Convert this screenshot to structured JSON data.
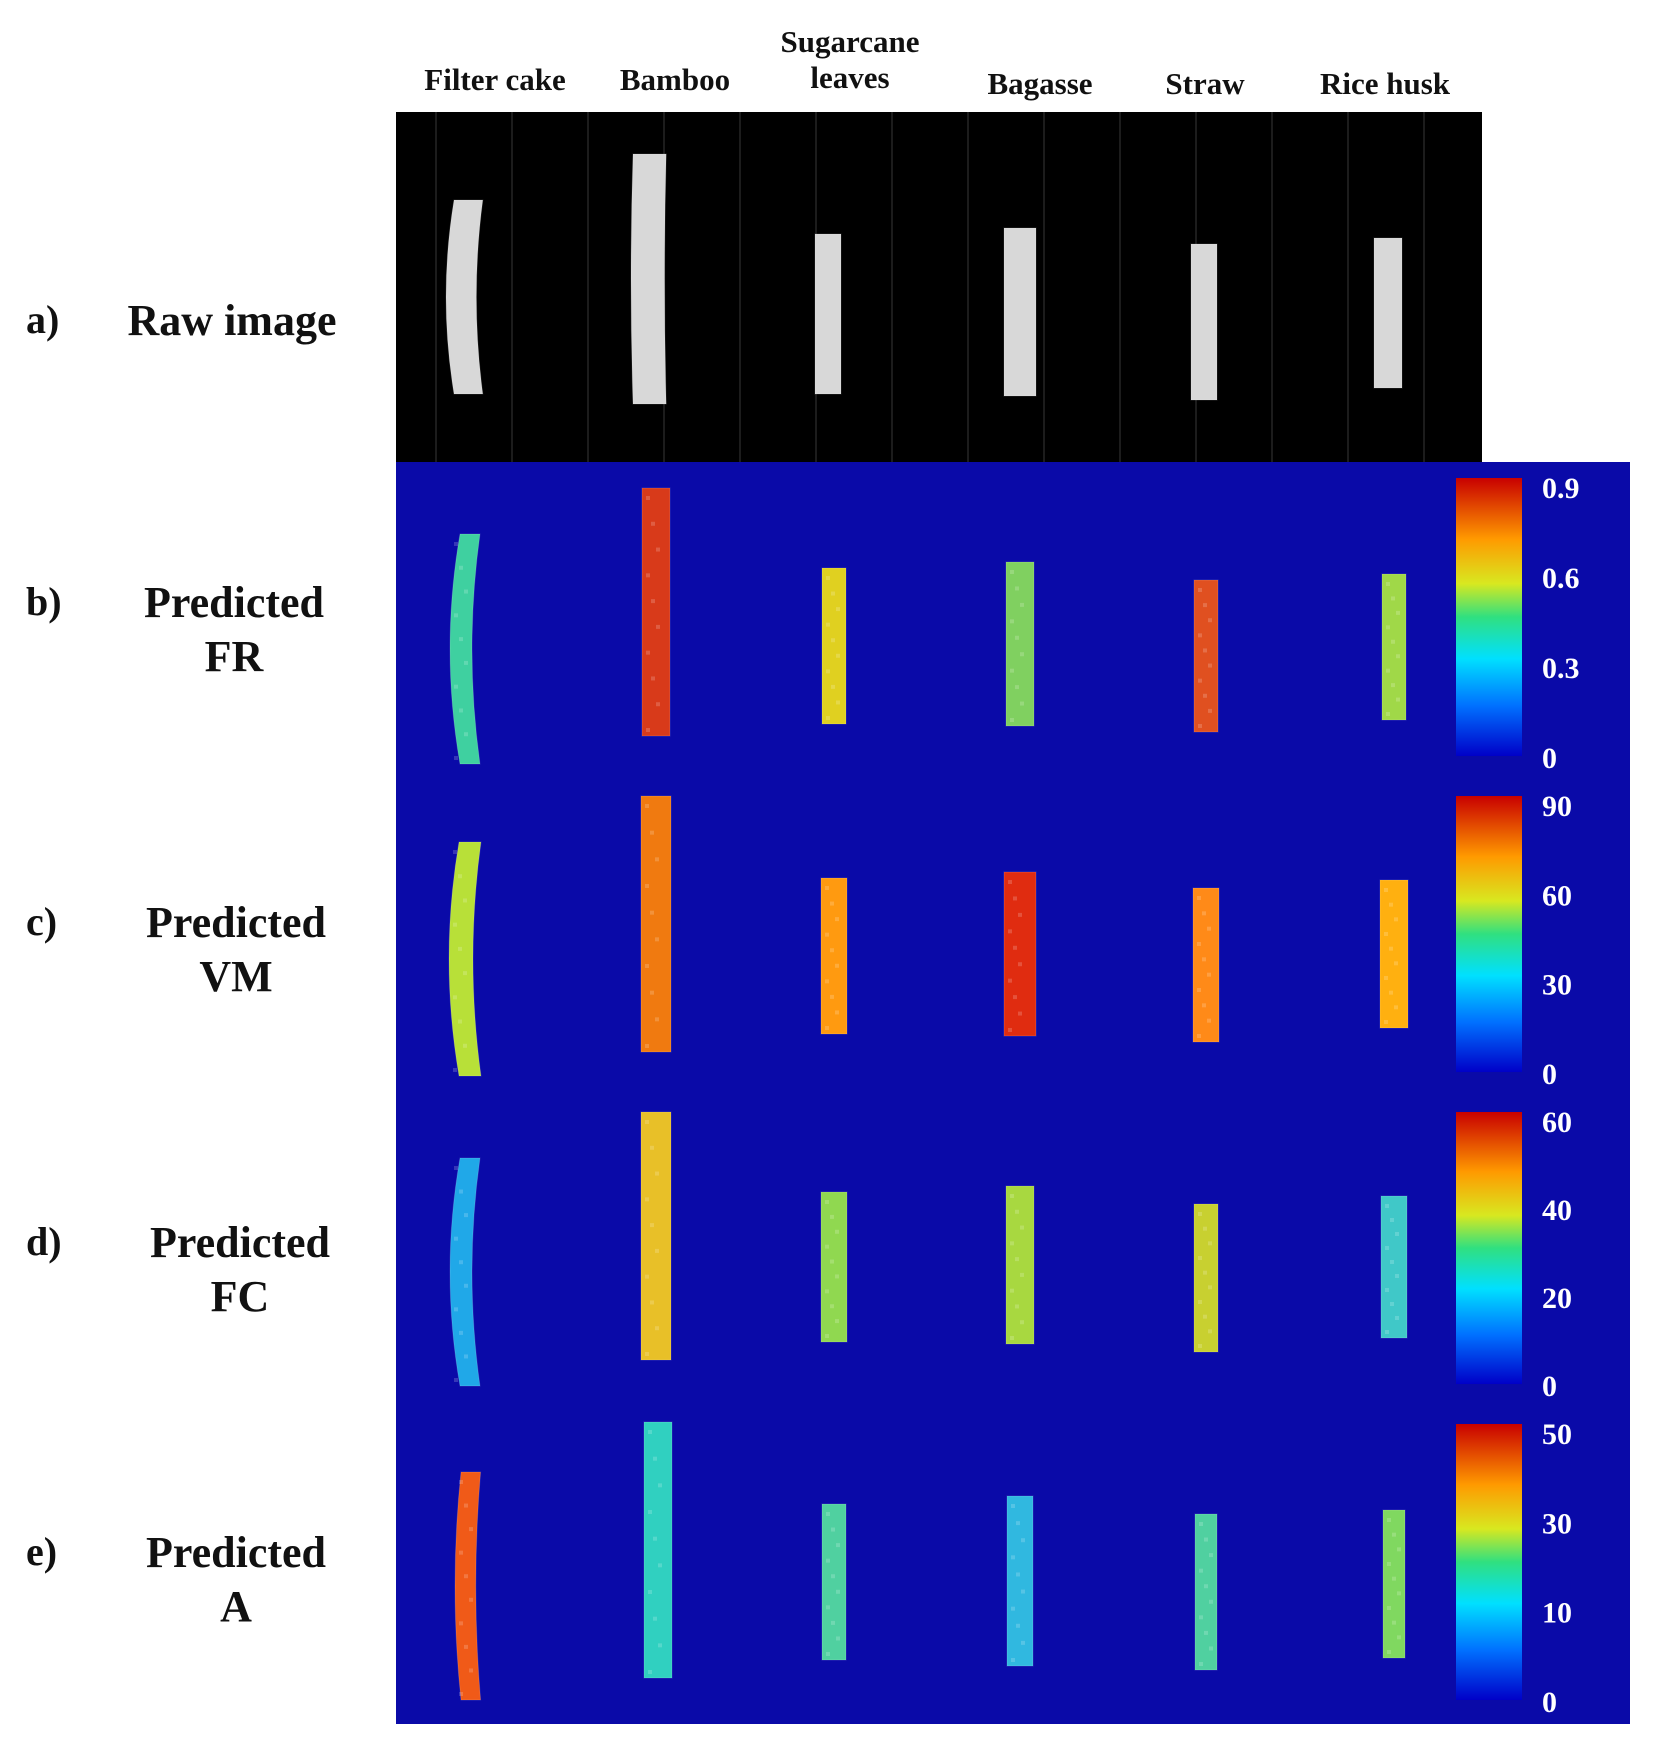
{
  "columns": [
    "Filter cake",
    "Bamboo",
    "Sugarcane leaves",
    "Bagasse",
    "Straw",
    "Rice husk"
  ],
  "columns_display": [
    {
      "line1": "Filter cake",
      "line2": ""
    },
    {
      "line1": "Bamboo",
      "line2": ""
    },
    {
      "line1": "Sugarcane",
      "line2": "leaves"
    },
    {
      "line1": "Bagasse",
      "line2": ""
    },
    {
      "line1": "Straw",
      "line2": ""
    },
    {
      "line1": "Rice husk",
      "line2": ""
    }
  ],
  "rows": [
    {
      "letter": "a)",
      "label1": "Raw image",
      "label2": "",
      "type": "raw"
    },
    {
      "letter": "b)",
      "label1": "Predicted",
      "label2": "FR",
      "type": "map",
      "colorbar": {
        "ticks": [
          "0.9",
          "0.6",
          "0.3",
          "0"
        ]
      },
      "sample_colors": [
        "#3fd0a0",
        "#d83a1a",
        "#e0d020",
        "#80d060",
        "#e05020",
        "#a0d848"
      ]
    },
    {
      "letter": "c)",
      "label1": "Predicted",
      "label2": "VM",
      "type": "map",
      "colorbar": {
        "ticks": [
          "90",
          "60",
          "30",
          "0"
        ]
      },
      "sample_colors": [
        "#b8e038",
        "#f07a10",
        "#ff9a10",
        "#e02c10",
        "#ff8a18",
        "#ffb010"
      ]
    },
    {
      "letter": "d)",
      "label1": "Predicted",
      "label2": "FC",
      "type": "map",
      "colorbar": {
        "ticks": [
          "60",
          "40",
          "20",
          "0"
        ]
      },
      "sample_colors": [
        "#20a8e8",
        "#e8c028",
        "#90d850",
        "#a8d840",
        "#c8d030",
        "#40c8c8"
      ]
    },
    {
      "letter": "e)",
      "label1": "Predicted",
      "label2": "A",
      "type": "map",
      "colorbar": {
        "ticks": [
          "50",
          "30",
          "10",
          "0"
        ]
      },
      "sample_colors": [
        "#f05a18",
        "#30d0c0",
        "#50d0a0",
        "#30b8e0",
        "#50d0a0",
        "#80d860"
      ]
    }
  ],
  "colors": {
    "map_background": "#0a0aa8",
    "raw_background": "#000000",
    "raw_sample": "#d8d8d8"
  }
}
